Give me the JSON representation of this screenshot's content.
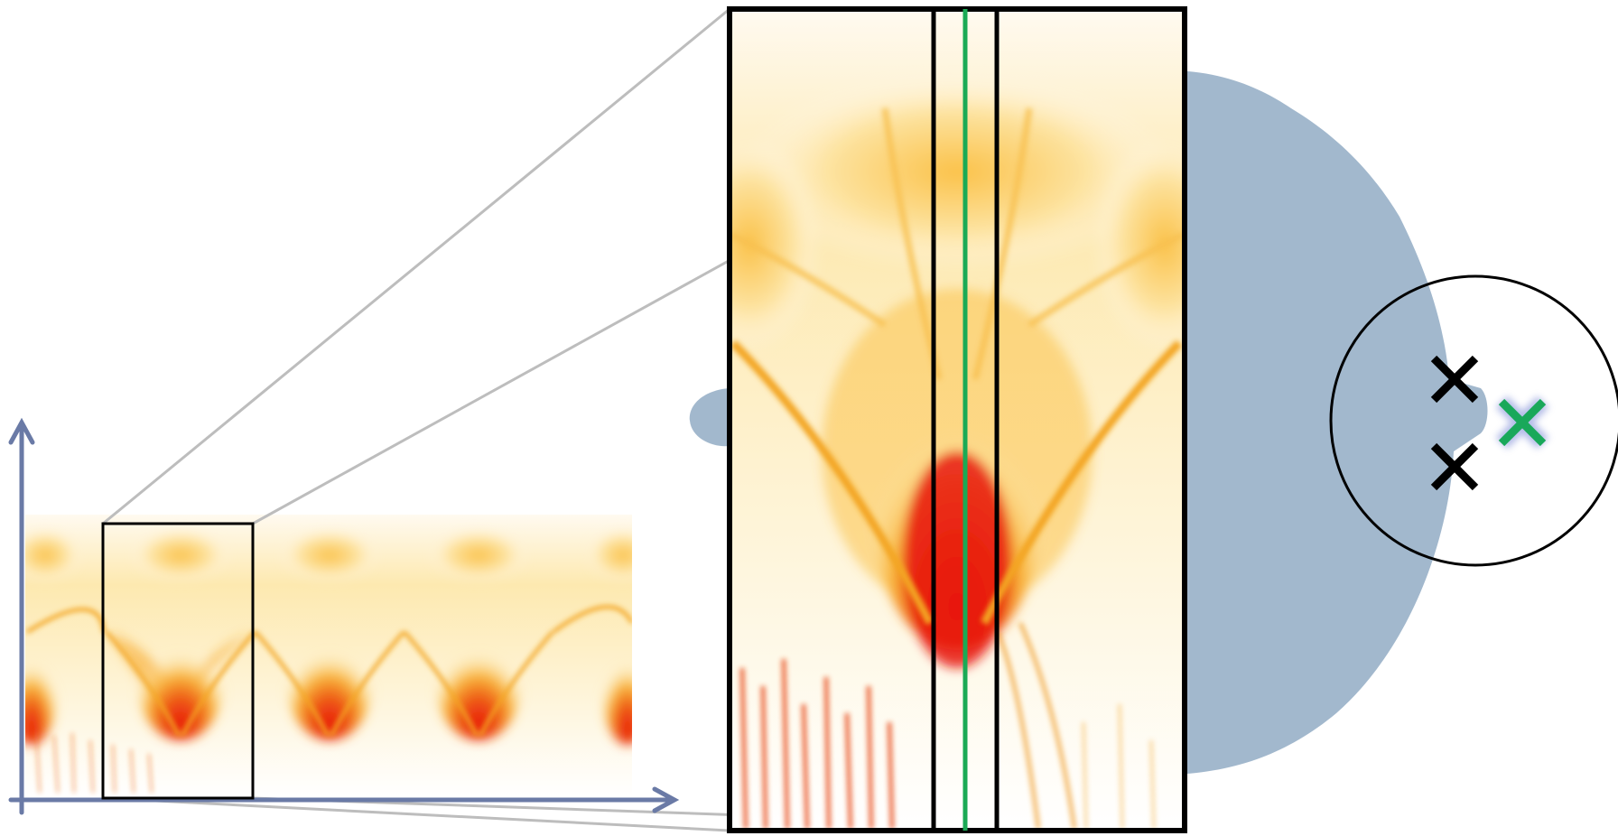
{
  "diagram": {
    "background_color": "#ffffff",
    "heat_colors": [
      "#fffaf0",
      "#fde9b0",
      "#fbc24a",
      "#f59e1c",
      "#ee5a14",
      "#e8170f"
    ],
    "blob_color": "#a2b8cd",
    "axis_color": "#6a7aa6",
    "zoom_line_color": "#bdbdbd",
    "frame_color": "#000000",
    "cut_line_color": "#1aaa55",
    "markers": [
      {
        "name": "black-cross-upper",
        "color": "#000000"
      },
      {
        "name": "black-cross-lower",
        "color": "#000000"
      },
      {
        "name": "green-cross",
        "color": "#19a85a"
      }
    ]
  }
}
